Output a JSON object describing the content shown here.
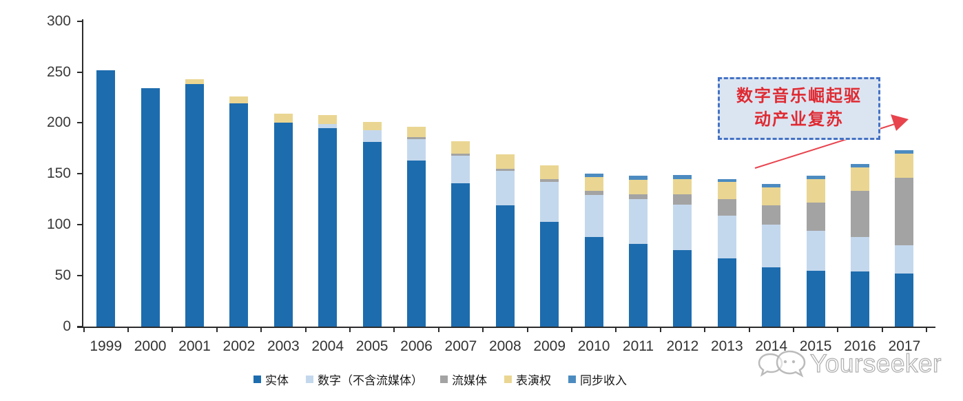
{
  "chart_data": {
    "type": "bar",
    "stacked": true,
    "title": "",
    "xlabel": "",
    "ylabel": "",
    "ylim": [
      0,
      300
    ],
    "ytick_step": 50,
    "grid": false,
    "legend_position": "bottom",
    "categories": [
      "1999",
      "2000",
      "2001",
      "2002",
      "2003",
      "2004",
      "2005",
      "2006",
      "2007",
      "2008",
      "2009",
      "2010",
      "2011",
      "2012",
      "2013",
      "2014",
      "2015",
      "2016",
      "2017"
    ],
    "series": [
      {
        "name": "实体",
        "color": "#1D6CAE",
        "values": [
          252,
          234,
          238,
          219,
          200,
          195,
          181,
          163,
          141,
          119,
          103,
          88,
          81,
          75,
          67,
          58,
          55,
          54,
          52
        ]
      },
      {
        "name": "数字（不含流媒体）",
        "color": "#C4D8ED",
        "values": [
          0,
          0,
          0,
          0,
          0,
          4,
          12,
          21,
          27,
          34,
          39,
          41,
          44,
          45,
          42,
          42,
          39,
          34,
          28
        ]
      },
      {
        "name": "流媒体",
        "color": "#A3A3A3",
        "values": [
          0,
          0,
          0,
          0,
          0,
          0,
          0,
          2,
          2,
          2,
          3,
          4,
          5,
          10,
          16,
          19,
          28,
          45,
          66
        ]
      },
      {
        "name": "表演权",
        "color": "#EAD692",
        "values": [
          0,
          0,
          5,
          7,
          9,
          9,
          8,
          10,
          12,
          14,
          13,
          14,
          14,
          15,
          17,
          18,
          23,
          23,
          24
        ]
      },
      {
        "name": "同步收入",
        "color": "#4C8BC0",
        "values": [
          0,
          0,
          0,
          0,
          0,
          0,
          0,
          0,
          0,
          0,
          0,
          3,
          4,
          4,
          3,
          3,
          3,
          4,
          3
        ]
      }
    ]
  },
  "annotation": {
    "line1": "数字音乐崛起驱",
    "line2": "动产业复苏",
    "text_color": "#DF2A32",
    "box_fill": "#DBE5F2",
    "box_border": "#4472C4",
    "arrow_color": "#E8444E"
  },
  "watermark": {
    "text": "Yourseeker",
    "icon": "chat-bubbles-icon"
  },
  "axis": {
    "line_color": "#2b2b2b",
    "label_color": "#3a3a3a"
  }
}
